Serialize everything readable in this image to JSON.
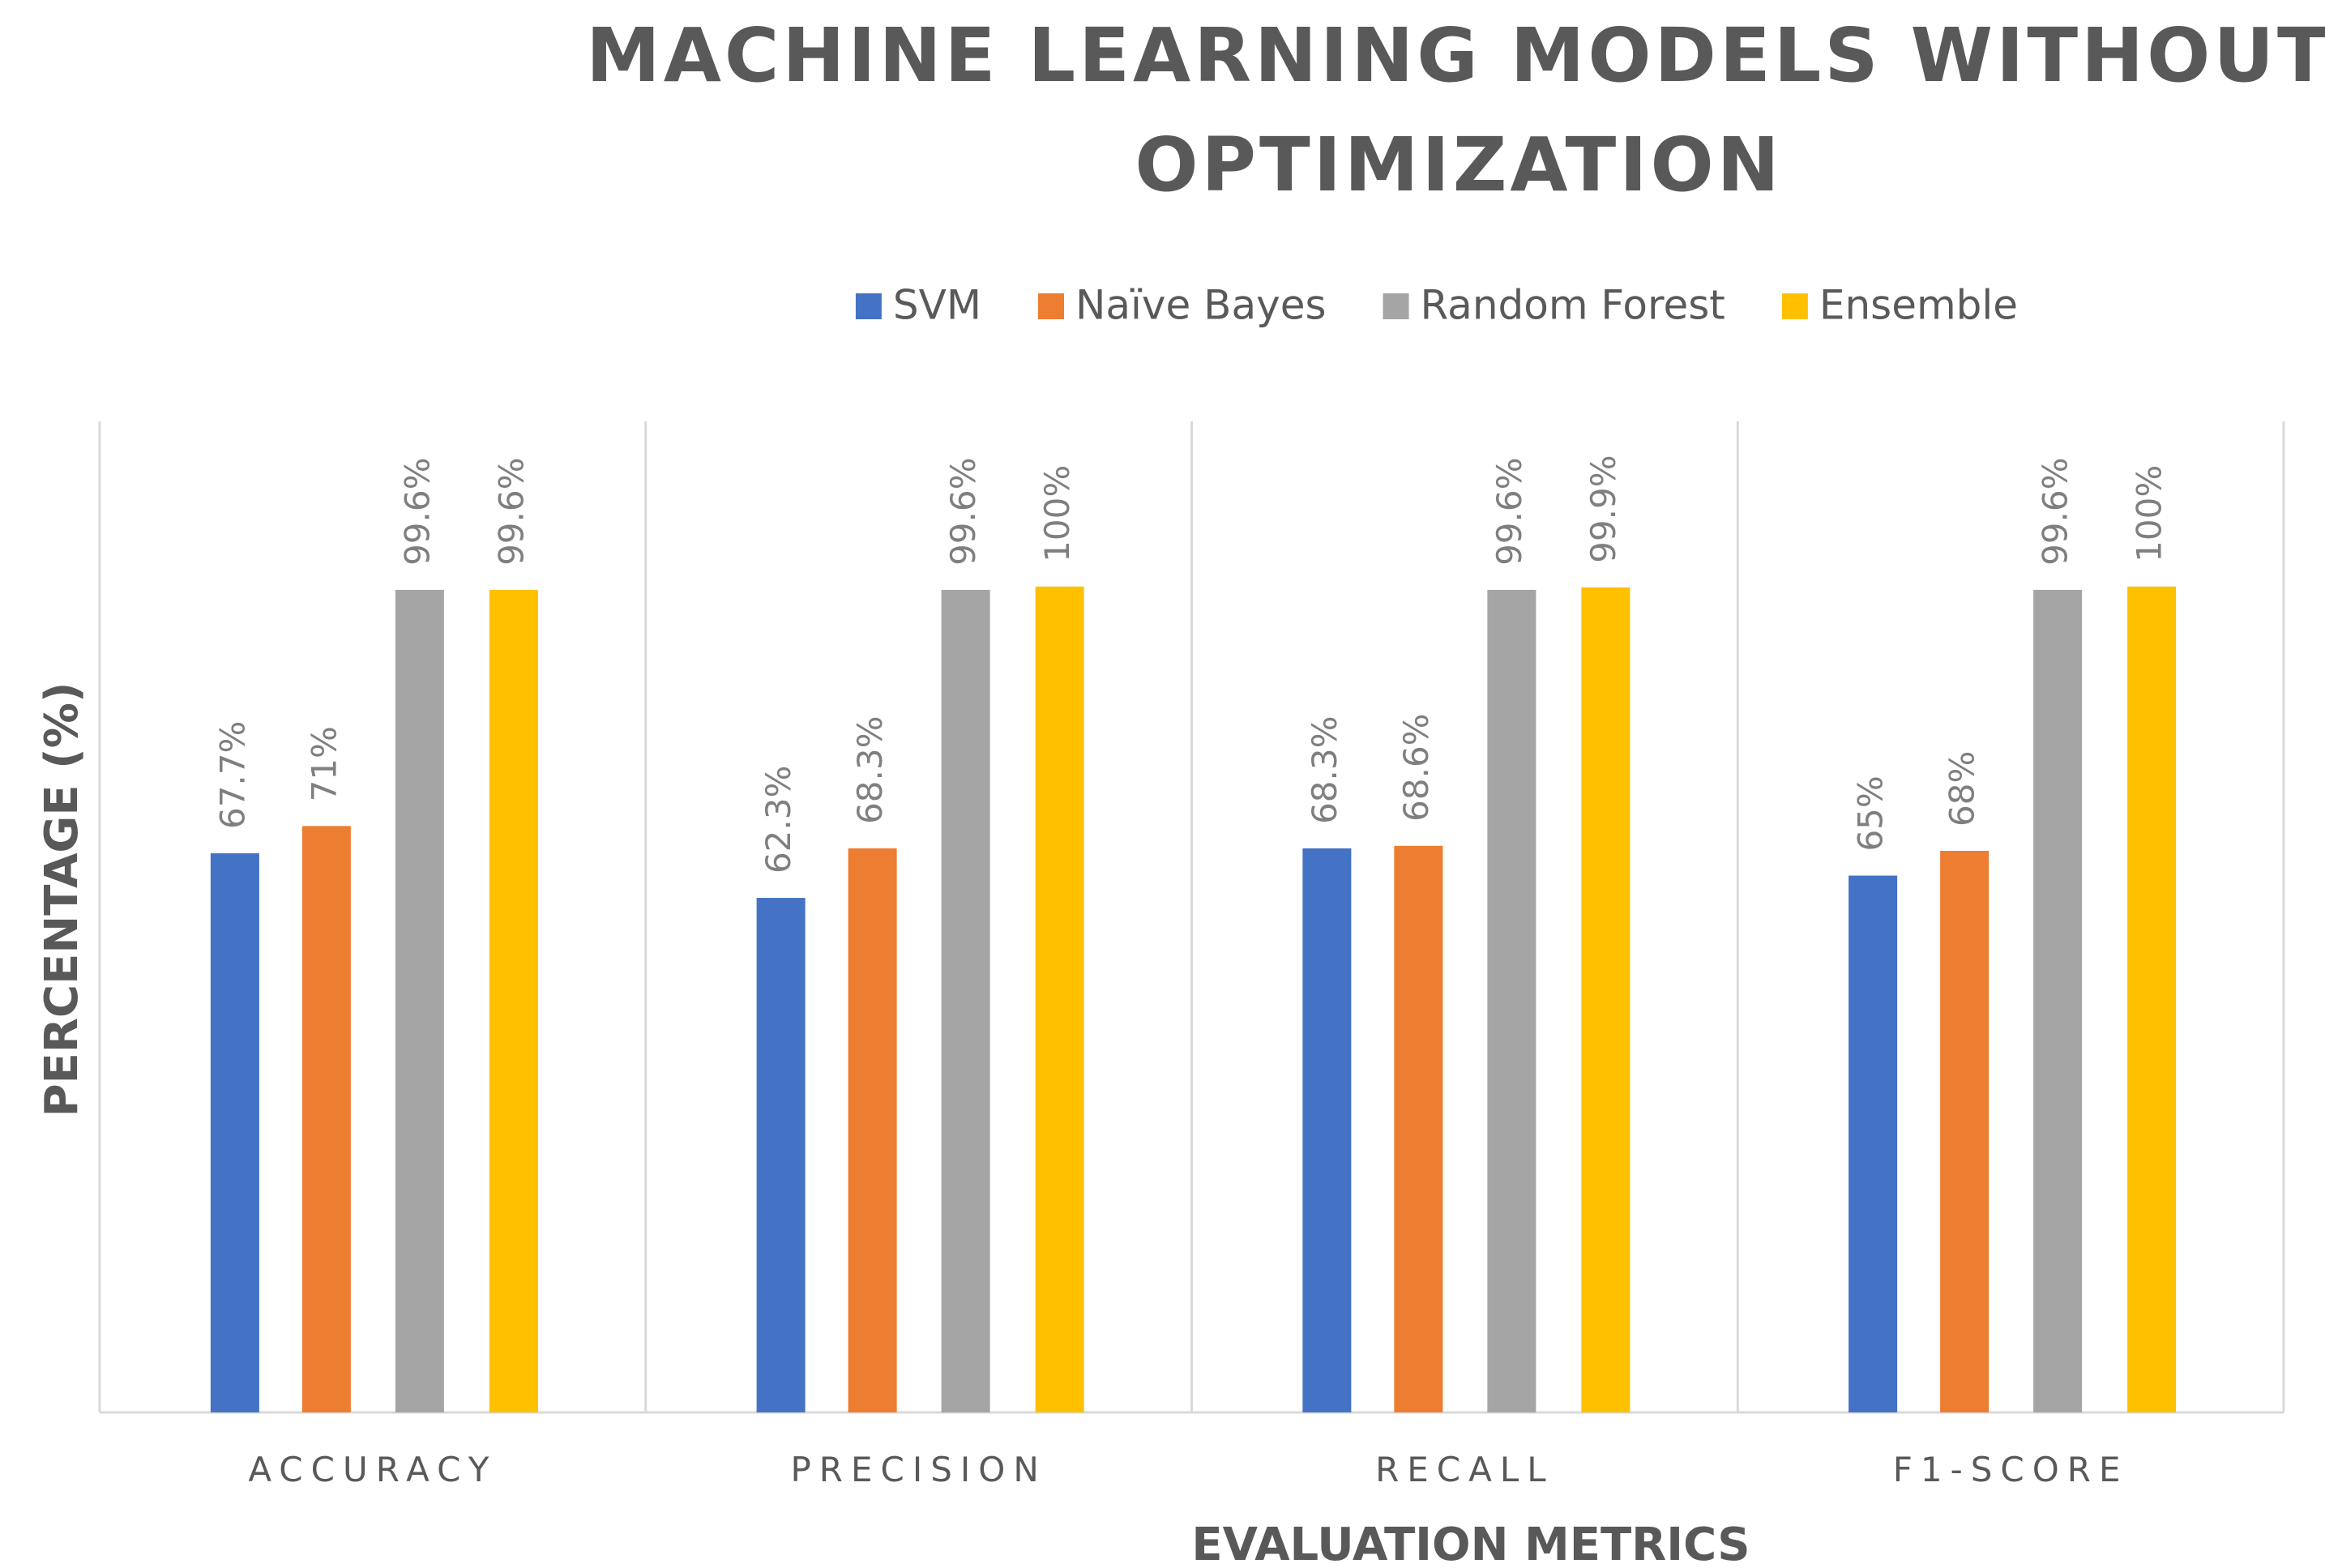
{
  "chart_data": {
    "type": "bar",
    "title": "MACHINE LEARNING MODELS WITHOUT OPTIMIZATION",
    "title_lines": [
      "MACHINE LEARNING MODELS WITHOUT",
      "OPTIMIZATION"
    ],
    "xlabel": "EVALUATION METRICS",
    "ylabel": "PERCENTAGE (%)",
    "ylim": [
      0,
      120
    ],
    "legend_position": "top",
    "categories": [
      "ACCURACY",
      "PRECISION",
      "RECALL",
      "F1-SCORE"
    ],
    "series": [
      {
        "name": "SVM",
        "color": "#4472c4",
        "values": [
          67.7,
          62.3,
          68.3,
          65
        ],
        "labels": [
          "67.7%",
          "62.3%",
          "68.3%",
          "65%"
        ]
      },
      {
        "name": "Naïve Bayes",
        "color": "#ed7d31",
        "values": [
          71,
          68.3,
          68.6,
          68
        ],
        "labels": [
          "71%",
          "68.3%",
          "68.6%",
          "68%"
        ]
      },
      {
        "name": "Random Forest",
        "color": "#a5a5a5",
        "values": [
          99.6,
          99.6,
          99.6,
          99.6
        ],
        "labels": [
          "99.6%",
          "99.6%",
          "99.6%",
          "99.6%"
        ]
      },
      {
        "name": "Ensemble",
        "color": "#ffc000",
        "values": [
          99.6,
          100,
          99.9,
          100
        ],
        "labels": [
          "99.6%",
          "100%",
          "99.9%",
          "100%"
        ]
      }
    ]
  }
}
